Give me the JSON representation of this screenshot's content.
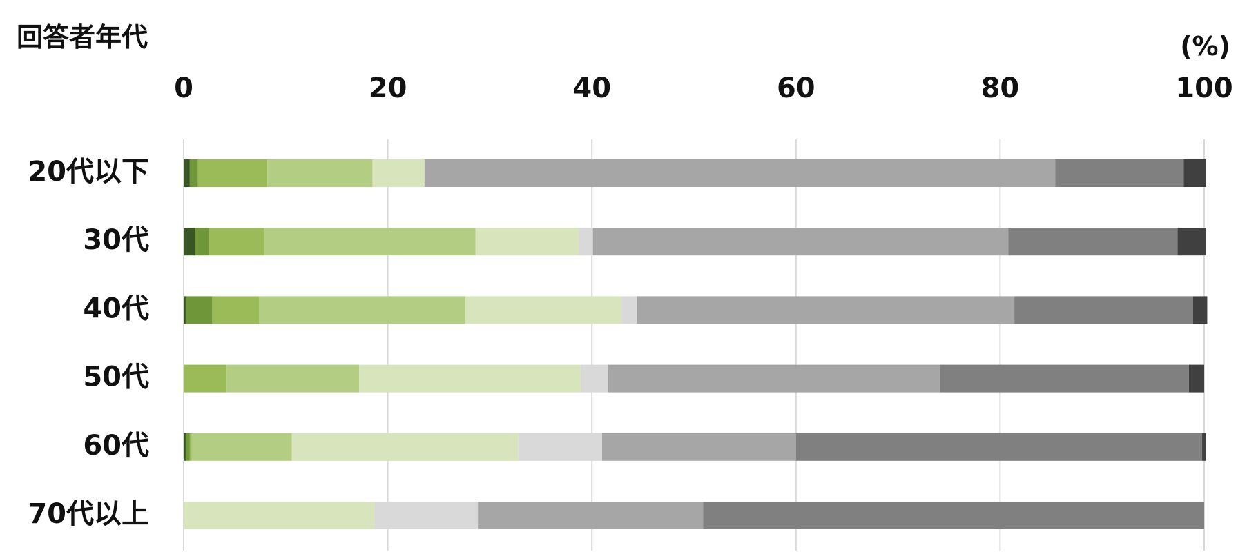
{
  "chart_data": {
    "type": "bar",
    "orientation": "horizontal",
    "stacked": true,
    "title": "回答者年代",
    "unit_label": "(%)",
    "xlim": [
      0,
      100
    ],
    "x_ticks": [
      "0",
      "20",
      "40",
      "60",
      "80",
      "100"
    ],
    "x_tick_values": [
      0,
      20,
      40,
      60,
      80,
      100
    ],
    "grid": true,
    "legend": "none",
    "categories": [
      "20代以下",
      "30代",
      "40代",
      "50代",
      "60代",
      "70代以上"
    ],
    "segment_colors": [
      "#375623",
      "#70963a",
      "#9bbb59",
      "#b3cd83",
      "#d8e4bc",
      "#d9d9d9",
      "#a6a6a6",
      "#808080",
      "#404040"
    ],
    "series": [
      {
        "values": [
          0.6,
          1.1,
          0.2,
          0.0,
          0.2,
          0.0
        ]
      },
      {
        "values": [
          0.8,
          1.4,
          2.6,
          0.0,
          0.4,
          0.0
        ]
      },
      {
        "values": [
          6.8,
          5.4,
          4.6,
          4.2,
          0.2,
          0.0
        ]
      },
      {
        "values": [
          10.3,
          20.7,
          20.2,
          13.0,
          9.8,
          0.0
        ]
      },
      {
        "values": [
          5.1,
          10.1,
          15.3,
          21.7,
          22.2,
          18.7
        ]
      },
      {
        "values": [
          0.0,
          1.4,
          1.5,
          2.7,
          8.2,
          10.2
        ]
      },
      {
        "values": [
          61.8,
          40.7,
          37.0,
          32.5,
          19.0,
          22.0
        ]
      },
      {
        "values": [
          12.6,
          16.6,
          17.5,
          24.4,
          39.8,
          49.1
        ]
      },
      {
        "values": [
          2.2,
          2.8,
          1.4,
          1.5,
          0.4,
          0.0
        ]
      }
    ]
  }
}
